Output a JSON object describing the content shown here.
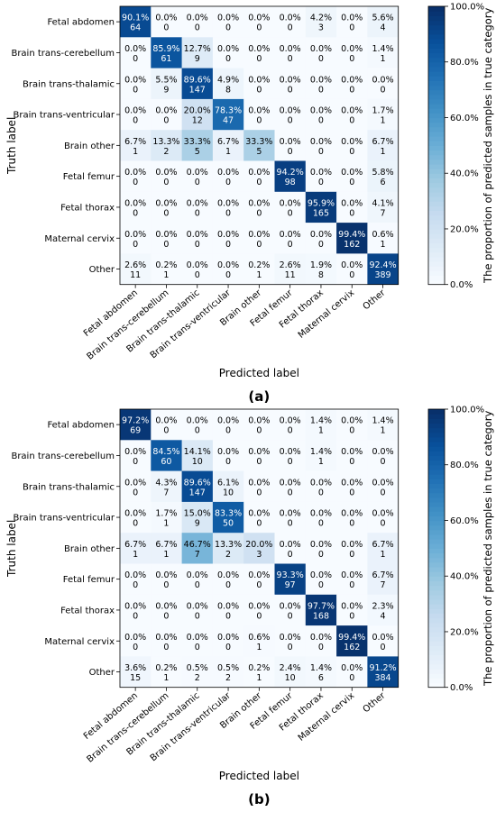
{
  "chart_data": [
    {
      "type": "heatmap",
      "panel_label": "(a)",
      "xlabel": "Predicted label",
      "ylabel": "Truth label",
      "categories": [
        "Fetal abdomen",
        "Brain trans-cerebellum",
        "Brain trans-thalamic",
        "Brain trans-ventricular",
        "Brain other",
        "Fetal femur",
        "Fetal thorax",
        "Maternal cervix",
        "Other"
      ],
      "colorbar_label": "The proportion of predicted samples in true category",
      "colorbar_ticks": [
        "0.0%",
        "20.0%",
        "40.0%",
        "60.0%",
        "80.0%",
        "100.0%"
      ],
      "colormap": "Blues",
      "percent": [
        [
          "90.1%",
          "0.0%",
          "0.0%",
          "0.0%",
          "0.0%",
          "0.0%",
          "4.2%",
          "0.0%",
          "5.6%"
        ],
        [
          "0.0%",
          "85.9%",
          "12.7%",
          "0.0%",
          "0.0%",
          "0.0%",
          "0.0%",
          "0.0%",
          "1.4%"
        ],
        [
          "0.0%",
          "5.5%",
          "89.6%",
          "4.9%",
          "0.0%",
          "0.0%",
          "0.0%",
          "0.0%",
          "0.0%"
        ],
        [
          "0.0%",
          "0.0%",
          "20.0%",
          "78.3%",
          "0.0%",
          "0.0%",
          "0.0%",
          "0.0%",
          "1.7%"
        ],
        [
          "6.7%",
          "13.3%",
          "33.3%",
          "6.7%",
          "33.3%",
          "0.0%",
          "0.0%",
          "0.0%",
          "6.7%"
        ],
        [
          "0.0%",
          "0.0%",
          "0.0%",
          "0.0%",
          "0.0%",
          "94.2%",
          "0.0%",
          "0.0%",
          "5.8%"
        ],
        [
          "0.0%",
          "0.0%",
          "0.0%",
          "0.0%",
          "0.0%",
          "0.0%",
          "95.9%",
          "0.0%",
          "4.1%"
        ],
        [
          "0.0%",
          "0.0%",
          "0.0%",
          "0.0%",
          "0.0%",
          "0.0%",
          "0.0%",
          "99.4%",
          "0.6%"
        ],
        [
          "2.6%",
          "0.2%",
          "0.0%",
          "0.0%",
          "0.2%",
          "2.6%",
          "1.9%",
          "0.0%",
          "92.4%"
        ]
      ],
      "counts": [
        [
          64,
          0,
          0,
          0,
          0,
          0,
          3,
          0,
          4
        ],
        [
          0,
          61,
          9,
          0,
          0,
          0,
          0,
          0,
          1
        ],
        [
          0,
          9,
          147,
          8,
          0,
          0,
          0,
          0,
          0
        ],
        [
          0,
          0,
          12,
          47,
          0,
          0,
          0,
          0,
          1
        ],
        [
          1,
          2,
          5,
          1,
          5,
          0,
          0,
          0,
          1
        ],
        [
          0,
          0,
          0,
          0,
          0,
          98,
          0,
          0,
          6
        ],
        [
          0,
          0,
          0,
          0,
          0,
          0,
          165,
          0,
          7
        ],
        [
          0,
          0,
          0,
          0,
          0,
          0,
          0,
          162,
          1
        ],
        [
          11,
          1,
          0,
          0,
          1,
          11,
          8,
          0,
          389
        ]
      ]
    },
    {
      "type": "heatmap",
      "panel_label": "(b)",
      "xlabel": "Predicted label",
      "ylabel": "Truth label",
      "categories": [
        "Fetal abdomen",
        "Brain trans-cerebellum",
        "Brain trans-thalamic",
        "Brain trans-ventricular",
        "Brain other",
        "Fetal femur",
        "Fetal thorax",
        "Maternal cervix",
        "Other"
      ],
      "colorbar_label": "The proportion of predicted samples in true category",
      "colorbar_ticks": [
        "0.0%",
        "20.0%",
        "40.0%",
        "60.0%",
        "80.0%",
        "100.0%"
      ],
      "colormap": "Blues",
      "percent": [
        [
          "97.2%",
          "0.0%",
          "0.0%",
          "0.0%",
          "0.0%",
          "0.0%",
          "1.4%",
          "0.0%",
          "1.4%"
        ],
        [
          "0.0%",
          "84.5%",
          "14.1%",
          "0.0%",
          "0.0%",
          "0.0%",
          "1.4%",
          "0.0%",
          "0.0%"
        ],
        [
          "0.0%",
          "4.3%",
          "89.6%",
          "6.1%",
          "0.0%",
          "0.0%",
          "0.0%",
          "0.0%",
          "0.0%"
        ],
        [
          "0.0%",
          "1.7%",
          "15.0%",
          "83.3%",
          "0.0%",
          "0.0%",
          "0.0%",
          "0.0%",
          "0.0%"
        ],
        [
          "6.7%",
          "6.7%",
          "46.7%",
          "13.3%",
          "20.0%",
          "0.0%",
          "0.0%",
          "0.0%",
          "6.7%"
        ],
        [
          "0.0%",
          "0.0%",
          "0.0%",
          "0.0%",
          "0.0%",
          "93.3%",
          "0.0%",
          "0.0%",
          "6.7%"
        ],
        [
          "0.0%",
          "0.0%",
          "0.0%",
          "0.0%",
          "0.0%",
          "0.0%",
          "97.7%",
          "0.0%",
          "2.3%"
        ],
        [
          "0.0%",
          "0.0%",
          "0.0%",
          "0.0%",
          "0.6%",
          "0.0%",
          "0.0%",
          "99.4%",
          "0.0%"
        ],
        [
          "3.6%",
          "0.2%",
          "0.5%",
          "0.5%",
          "0.2%",
          "2.4%",
          "1.4%",
          "0.0%",
          "91.2%"
        ]
      ],
      "counts": [
        [
          69,
          0,
          0,
          0,
          0,
          0,
          1,
          0,
          1
        ],
        [
          0,
          60,
          10,
          0,
          0,
          0,
          1,
          0,
          0
        ],
        [
          0,
          7,
          147,
          10,
          0,
          0,
          0,
          0,
          0
        ],
        [
          0,
          1,
          9,
          50,
          0,
          0,
          0,
          0,
          0
        ],
        [
          1,
          1,
          7,
          2,
          3,
          0,
          0,
          0,
          1
        ],
        [
          0,
          0,
          0,
          0,
          0,
          97,
          0,
          0,
          7
        ],
        [
          0,
          0,
          0,
          0,
          0,
          0,
          168,
          0,
          4
        ],
        [
          0,
          0,
          0,
          0,
          1,
          0,
          0,
          162,
          0
        ],
        [
          15,
          1,
          2,
          2,
          1,
          10,
          6,
          0,
          384
        ]
      ]
    }
  ]
}
